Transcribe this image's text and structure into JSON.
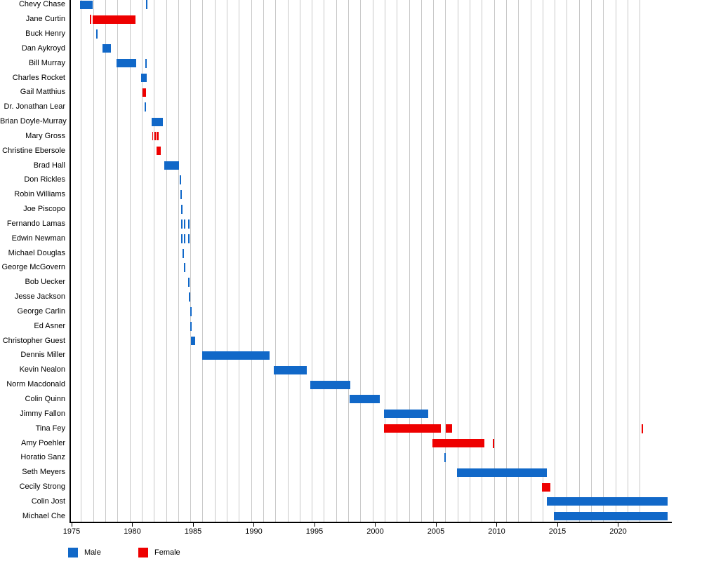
{
  "chart_data": {
    "type": "gantt",
    "x_axis": {
      "tick_years": [
        1975,
        1980,
        1985,
        1990,
        1995,
        2000,
        2005,
        2010,
        2015,
        2020
      ],
      "min_year": 1975,
      "max_year": 2024.3
    },
    "gridlines": {
      "first_year": 1975.78,
      "step_years": 1,
      "count": 47
    },
    "colors": {
      "male": "#1168c8",
      "female": "#ee0000",
      "grid": "#c8c8c8",
      "axis": "#000000",
      "text": "#000000"
    },
    "legend": [
      {
        "label": "Male",
        "color_key": "male"
      },
      {
        "label": "Female",
        "color_key": "female"
      }
    ],
    "rows": [
      {
        "name": "Chevy Chase",
        "gender": "male",
        "bars": [
          [
            1975.7,
            1976.75
          ]
        ],
        "events": [
          1981.2
        ]
      },
      {
        "name": "Jane Curtin",
        "gender": "female",
        "bars": [
          [
            1976.75,
            1980.25
          ]
        ],
        "events": [
          1976.58
        ]
      },
      {
        "name": "Buck Henry",
        "gender": "male",
        "bars": [],
        "events": [
          1977.1
        ]
      },
      {
        "name": "Dan Aykroyd",
        "gender": "male",
        "bars": [
          [
            1977.55,
            1978.25
          ]
        ],
        "events": []
      },
      {
        "name": "Bill Murray",
        "gender": "male",
        "bars": [
          [
            1978.7,
            1980.3
          ]
        ],
        "events": [
          1981.1
        ]
      },
      {
        "name": "Charles Rocket",
        "gender": "male",
        "bars": [
          [
            1980.75,
            1981.2
          ]
        ],
        "events": []
      },
      {
        "name": "Gail Matthius",
        "gender": "female",
        "bars": [
          [
            1980.85,
            1981.15
          ]
        ],
        "events": []
      },
      {
        "name": "Dr. Jonathan Lear",
        "gender": "male",
        "bars": [],
        "events": [
          1981.05
        ]
      },
      {
        "name": "Brian Doyle-Murray",
        "gender": "male",
        "bars": [
          [
            1981.6,
            1982.5
          ]
        ],
        "events": []
      },
      {
        "name": "Mary Gross",
        "gender": "female",
        "bars": [
          [
            1981.62,
            1981.72
          ],
          [
            1981.8,
            1981.95
          ],
          [
            1982.0,
            1982.17
          ]
        ],
        "events": []
      },
      {
        "name": "Christine Ebersole",
        "gender": "female",
        "bars": [
          [
            1982.02,
            1982.32
          ]
        ],
        "events": []
      },
      {
        "name": "Brad Hall",
        "gender": "male",
        "bars": [
          [
            1982.65,
            1983.85
          ]
        ],
        "events": []
      },
      {
        "name": "Don Rickles",
        "gender": "male",
        "bars": [],
        "events": [
          1983.95
        ]
      },
      {
        "name": "Robin Williams",
        "gender": "male",
        "bars": [],
        "events": [
          1984.0
        ]
      },
      {
        "name": "Joe Piscopo",
        "gender": "male",
        "bars": [],
        "events": [
          1984.05
        ]
      },
      {
        "name": "Fernando Lamas",
        "gender": "male",
        "bars": [],
        "events": [
          1984.1,
          1984.3,
          1984.65
        ]
      },
      {
        "name": "Edwin Newman",
        "gender": "male",
        "bars": [],
        "events": [
          1984.1,
          1984.3,
          1984.65
        ]
      },
      {
        "name": "Michael Douglas",
        "gender": "male",
        "bars": [],
        "events": [
          1984.2
        ]
      },
      {
        "name": "George McGovern",
        "gender": "male",
        "bars": [],
        "events": [
          1984.3
        ]
      },
      {
        "name": "Bob Uecker",
        "gender": "male",
        "bars": [],
        "events": [
          1984.67
        ]
      },
      {
        "name": "Jesse Jackson",
        "gender": "male",
        "bars": [],
        "events": [
          1984.73
        ]
      },
      {
        "name": "George Carlin",
        "gender": "male",
        "bars": [],
        "events": [
          1984.8
        ]
      },
      {
        "name": "Ed Asner",
        "gender": "male",
        "bars": [],
        "events": [
          1984.8
        ]
      },
      {
        "name": "Christopher Guest",
        "gender": "male",
        "bars": [
          [
            1984.85,
            1985.2
          ]
        ],
        "events": []
      },
      {
        "name": "Dennis Miller",
        "gender": "male",
        "bars": [
          [
            1985.75,
            1991.3
          ]
        ],
        "events": []
      },
      {
        "name": "Kevin Nealon",
        "gender": "male",
        "bars": [
          [
            1991.65,
            1994.35
          ]
        ],
        "events": []
      },
      {
        "name": "Norm Macdonald",
        "gender": "male",
        "bars": [
          [
            1994.65,
            1997.95
          ]
        ],
        "events": []
      },
      {
        "name": "Colin Quinn",
        "gender": "male",
        "bars": [
          [
            1997.9,
            2000.4
          ]
        ],
        "events": []
      },
      {
        "name": "Jimmy Fallon",
        "gender": "male",
        "bars": [
          [
            2000.7,
            2004.35
          ]
        ],
        "events": []
      },
      {
        "name": "Tina Fey",
        "gender": "female",
        "bars": [
          [
            2000.75,
            2005.4
          ],
          [
            2005.8,
            2006.35
          ]
        ],
        "events": [
          2022.0
        ]
      },
      {
        "name": "Amy Poehler",
        "gender": "female",
        "bars": [
          [
            2004.7,
            2009.0
          ]
        ],
        "events": [
          2009.75
        ]
      },
      {
        "name": "Horatio Sanz",
        "gender": "male",
        "bars": [],
        "events": [
          2005.75
        ]
      },
      {
        "name": "Seth Meyers",
        "gender": "male",
        "bars": [
          [
            2006.75,
            2014.15
          ]
        ],
        "events": []
      },
      {
        "name": "Cecily Strong",
        "gender": "female",
        "bars": [
          [
            2013.7,
            2014.45
          ]
        ],
        "events": []
      },
      {
        "name": "Colin Jost",
        "gender": "male",
        "bars": [
          [
            2014.15,
            2024.1
          ]
        ],
        "events": []
      },
      {
        "name": "Michael Che",
        "gender": "male",
        "bars": [
          [
            2014.7,
            2024.1
          ]
        ],
        "events": []
      }
    ]
  }
}
